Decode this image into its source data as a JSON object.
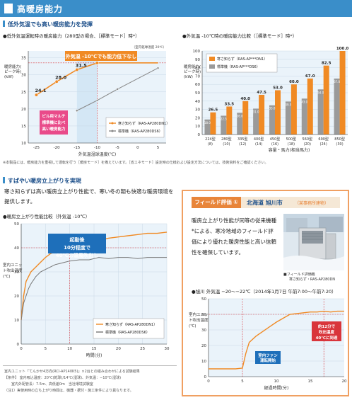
{
  "header": {
    "title": "高暖房能力"
  },
  "section1": {
    "title": "低外気温でも高い暖房能力を発揮",
    "chart1": {
      "title": "●低外気温運転時の暖房能力（280型の場合、［標準モード］時*）",
      "note_top": "（室内乾球温度 20℃）",
      "ylabel": "暖房能力(ピーク時)(kW)",
      "xlabel": "外気温湿球温度(℃)",
      "callout_top": "外気温 -10℃でも能力低下なし",
      "callout_left": "ビル用マルチ 標準機に比べ 高い暖房能力",
      "legend": [
        "寒さ知らず（RAS-AP280DN1）",
        "標準機（RAS-AP280DS6）"
      ]
    },
    "chart2": {
      "title": "●外気温 -10℃時の暖房能力比較（［標準モード］時*）",
      "ylabel": "暖房能力(ピーク時)(kW)",
      "xlabel": "容量・馬力(相当馬力)",
      "legend": [
        "寒さ知らず（RAS-AP***DN1）",
        "標準機（RAS-AP***DS6）"
      ]
    },
    "footnote": "※本製品には、暖房能力を重視して運転を行う［暖房モード］を備えています。［省エネモード］設定時の仕様および設定方法については、技術資料をご確認ください。"
  },
  "section2": {
    "title": "すばやい暖房立上がりを実現",
    "body": "寒さ知らずは高い暖房立上がり性能で、寒い冬の朝も快適な暖房環境を提供します。",
    "chart3": {
      "title": "●暖房立上がり性能比較（外気温 -10℃）",
      "callout": "起動後 10分程度で 40℃の温風吹出し",
      "ylabel": "室内ユニット吹出温度(℃)",
      "xlabel": "時間(分)",
      "legend": [
        "寒さ知らず（RAS-AP280DN1）",
        "標準機（RAS-AP280DS6）"
      ]
    },
    "conditions": [
      "室内ユニット「てんかせ4方向(RCI-AP140K5)」×2台との組み合わせによる試験結果",
      "【条件】 室内吸込温度：20℃(乾球)/14℃(湿球)、外気温：−10℃(湿球)",
      "室内外配管長：7.5m、高低差0m　当社環境試験室",
      "（注1）実使用時の立ち上がり時間は、機器・据付・施工条件により異なります。"
    ]
  },
  "field": {
    "label": "フィールド評価 ①",
    "location": "北海道 旭川市",
    "location_sub": "（某事務所建物）",
    "text": "暖房立上がり性能が同等の従来機種*による、寒冷地域のフィールド評価により優れた暖房性能と高い信頼性を確保しています。",
    "photo_caption1": "■フィールド評価機",
    "photo_caption2": "寒さ知らず・RAS-AP280DN",
    "chart_title": "●旭川 外気温 −20〜−22℃（2014年1月7日 午前7:00〜午前7:20）",
    "ylabel": "室内ユニット吹出温度(℃)",
    "xlabel": "経過時間(分)",
    "callout_fan": "室内ファン 運転開始",
    "callout_reach": "約12分で 吹出温度 40℃に到達"
  },
  "chart_data": [
    {
      "type": "line",
      "title": "低外気温運転時の暖房能力",
      "xlabel": "外気温湿球温度(℃)",
      "ylabel": "暖房能力(ピーク時)(kW)",
      "x_ticks": [
        -25,
        -20,
        -15,
        -10,
        -5,
        0,
        5
      ],
      "y_ticks": [
        10,
        15,
        20,
        25,
        30,
        35
      ],
      "xlim": [
        -27,
        7
      ],
      "ylim": [
        10,
        37
      ],
      "series": [
        {
          "name": "寒さ知らず（RAS-AP280DN1）",
          "color": "#f08a24",
          "x": [
            -25,
            -20,
            -15,
            -10,
            5
          ],
          "y": [
            24.1,
            28.0,
            31.5,
            33.5,
            33.5
          ],
          "labels": [
            "24.1",
            "28.0",
            "31.5",
            "33.5",
            ""
          ]
        },
        {
          "name": "標準機（RAS-AP280DS6）",
          "color": "#888888",
          "x": [
            -15,
            -10,
            -5,
            5
          ],
          "y": [
            19.5,
            22.5,
            25.8,
            32.0
          ]
        }
      ]
    },
    {
      "type": "bar",
      "title": "外気温 -10℃時の暖房能力比較",
      "xlabel": "容量・馬力(相当馬力)",
      "ylabel": "暖房能力(ピーク時)(kW)",
      "ylim": [
        0,
        100
      ],
      "y_ticks": [
        0,
        10,
        20,
        30,
        40,
        50,
        60,
        70,
        80,
        90,
        100
      ],
      "categories": [
        "224型(8)",
        "280型(10)",
        "335型(12)",
        "400型(14)",
        "450型(16)",
        "500型(18)",
        "560型(20)",
        "690型(24)",
        "850型(30)"
      ],
      "cat_top": [
        "224型",
        "280型",
        "335型",
        "400型",
        "450型",
        "500型",
        "560型",
        "690型",
        "850型"
      ],
      "cat_bot": [
        "(8)",
        "(10)",
        "(12)",
        "(14)",
        "(16)",
        "(18)",
        "(20)",
        "(24)",
        "(30)"
      ],
      "series": [
        {
          "name": "標準機（RAS-AP***DS6）",
          "color": "#9a9a9a",
          "values": [
            18.0,
            22.5,
            26.0,
            31.0,
            35.0,
            39.5,
            43.0,
            54.0,
            67.0
          ]
        },
        {
          "name": "寒さ知らず（RAS-AP***DN1）",
          "color": "#f08a24",
          "values": [
            26.5,
            33.5,
            40.0,
            47.5,
            53.0,
            60.0,
            67.0,
            82.5,
            100.0
          ]
        }
      ]
    },
    {
      "type": "line",
      "title": "暖房立上がり性能比較（外気温 -10℃）",
      "xlabel": "時間(分)",
      "ylabel": "室内ユニット吹出温度(℃)",
      "x_ticks": [
        0,
        5,
        10,
        15,
        20,
        25,
        30
      ],
      "y_ticks": [
        0,
        10,
        20,
        30,
        40,
        50
      ],
      "xlim": [
        0,
        30
      ],
      "ylim": [
        0,
        50
      ],
      "series": [
        {
          "name": "寒さ知らず（RAS-AP280DN1）",
          "color": "#f08a24",
          "x": [
            0,
            0.5,
            1,
            1.5,
            2,
            3,
            4,
            5,
            6,
            7,
            8,
            9,
            10,
            12,
            14,
            16,
            18,
            20,
            22,
            24,
            26,
            28,
            30
          ],
          "y": [
            10,
            20,
            26,
            28,
            30,
            32,
            34,
            36,
            37.5,
            38.5,
            39.5,
            40,
            40.5,
            41,
            42,
            43,
            44,
            44.5,
            45,
            45.5,
            46,
            46,
            46.5
          ]
        },
        {
          "name": "標準機（RAS-AP280DS6）",
          "color": "#777777",
          "x": [
            0,
            0.5,
            1,
            1.5,
            2,
            3,
            4,
            5,
            6,
            7,
            8,
            9,
            10,
            12,
            14,
            16,
            18,
            20,
            22,
            24,
            26,
            28,
            30
          ],
          "y": [
            10,
            17,
            20,
            23,
            25,
            28,
            30,
            31,
            32,
            33,
            33.5,
            34,
            34.5,
            35,
            35,
            36,
            35.5,
            36,
            36,
            35.5,
            36,
            36,
            36
          ]
        }
      ]
    },
    {
      "type": "line",
      "title": "旭川 外気温 −20〜−22℃",
      "xlabel": "経過時間(分)",
      "ylabel": "室内ユニット吹出温度(℃)",
      "x_ticks": [
        0,
        5,
        10,
        15,
        20
      ],
      "y_ticks": [
        0,
        10,
        20,
        30,
        40,
        50
      ],
      "xlim": [
        0,
        20
      ],
      "ylim": [
        0,
        50
      ],
      "series": [
        {
          "name": "吹出温度",
          "color": "#f08a24",
          "x": [
            0,
            1,
            2,
            3,
            4,
            5,
            5.5,
            6,
            7,
            8,
            9,
            10,
            11,
            12,
            13,
            14,
            15,
            16,
            17,
            18,
            19,
            20
          ],
          "y": [
            5,
            5,
            5,
            5,
            5,
            5.5,
            15,
            22,
            26,
            29,
            32,
            35,
            37.5,
            40,
            40.5,
            41,
            41.5,
            41.5,
            42,
            41.5,
            42,
            42
          ]
        }
      ]
    }
  ]
}
